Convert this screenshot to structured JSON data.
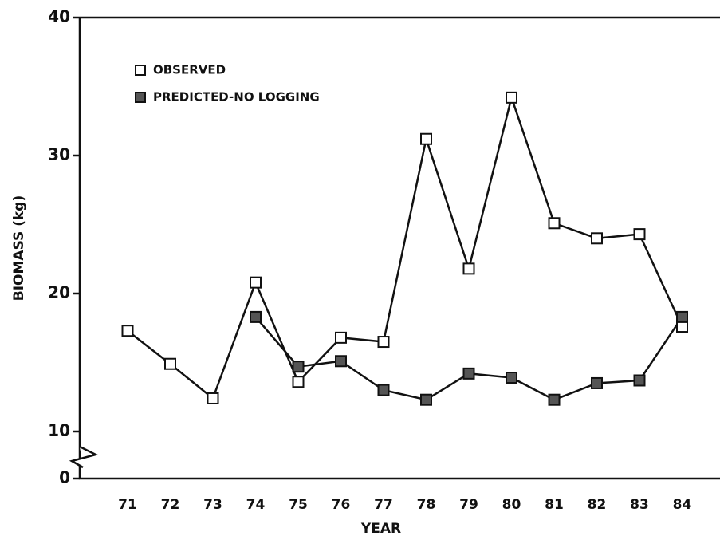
{
  "chart_data": {
    "type": "line",
    "xlabel": "YEAR",
    "ylabel": "BIOMASS (kg)",
    "categories": [
      "71",
      "72",
      "73",
      "74",
      "75",
      "76",
      "77",
      "78",
      "79",
      "80",
      "81",
      "82",
      "83",
      "84"
    ],
    "series": [
      {
        "name": "OBSERVED",
        "color": "#ffffff",
        "values": [
          17.3,
          14.9,
          12.4,
          20.8,
          13.6,
          16.8,
          16.5,
          31.2,
          21.8,
          34.2,
          25.1,
          24.0,
          24.3,
          17.6
        ]
      },
      {
        "name": "PREDICTED-NO LOGGING",
        "color": "#555555",
        "values": [
          null,
          null,
          null,
          18.3,
          14.7,
          15.1,
          13.0,
          12.3,
          14.2,
          13.9,
          12.3,
          13.5,
          13.7,
          18.3
        ]
      }
    ],
    "ylim": [
      0,
      40
    ],
    "yticks": [
      0,
      10,
      20,
      30,
      40
    ],
    "axis_break": [
      0,
      10
    ],
    "legend": "upper left"
  }
}
